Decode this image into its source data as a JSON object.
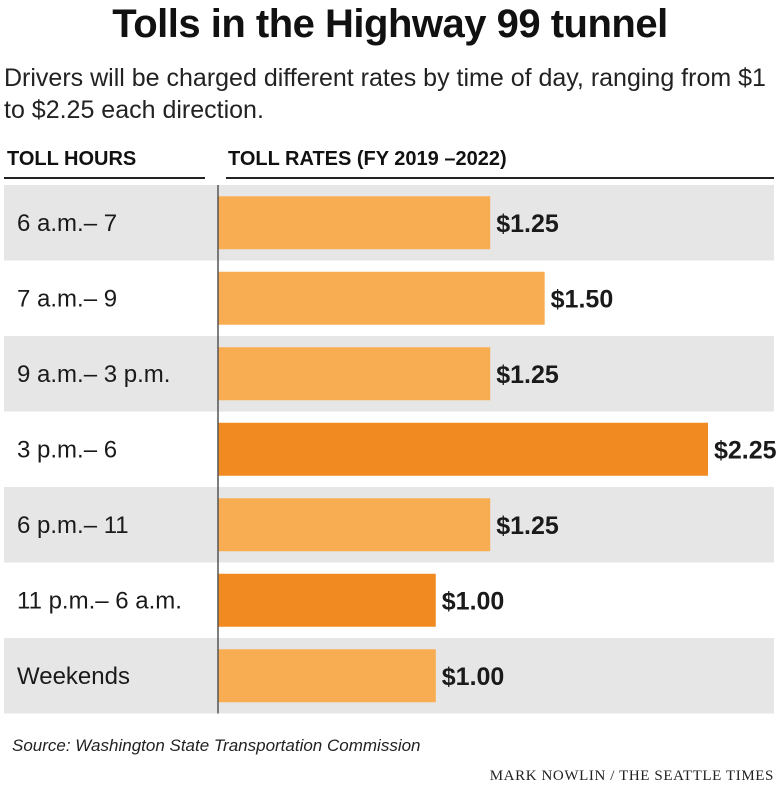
{
  "title": "Tolls in the Highway 99 tunnel",
  "subtitle": "Drivers will be charged different rates by time of day, ranging from $1 to $2.25 each direction.",
  "columns": {
    "hours": "TOLL HOURS",
    "rates": "TOLL RATES (FY 2019 –2022)"
  },
  "source": "Source: Washington State Transportation Commission",
  "credit": "MARK NOWLIN / THE SEATTLE TIMES",
  "colors": {
    "light_bar": "#f8ad52",
    "highlight_bar": "#f28a22",
    "band": "#e6e6e6",
    "axis": "#555555"
  },
  "chart_data": {
    "type": "bar",
    "orientation": "horizontal",
    "title": "Tolls in the Highway 99 tunnel",
    "xlabel": "TOLL RATES (FY 2019 –2022)",
    "ylabel": "TOLL HOURS",
    "xlim": [
      0,
      2.25
    ],
    "grid": false,
    "categories": [
      "6 a.m.– 7",
      "7 a.m.– 9",
      "9 a.m.– 3 p.m.",
      "3 p.m.– 6",
      "6 p.m.– 11",
      "11 p.m.– 6 a.m.",
      "Weekends"
    ],
    "values": [
      1.25,
      1.5,
      1.25,
      2.25,
      1.25,
      1.0,
      1.0
    ],
    "labels": [
      "$1.25",
      "$1.50",
      "$1.25",
      "$2.25",
      "$1.25",
      "$1.00",
      "$1.00"
    ],
    "highlighted": [
      false,
      false,
      false,
      true,
      false,
      true,
      false
    ]
  }
}
